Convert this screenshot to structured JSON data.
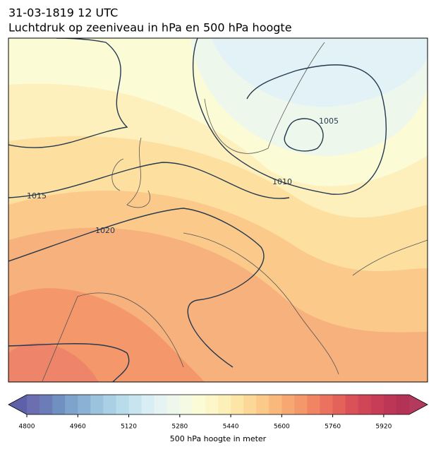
{
  "header": {
    "title": "31-03-1819 12 UTC",
    "subtitle": "Luchtdruk op zeeniveau in hPa en 500 hPa hoogte"
  },
  "map": {
    "contour_labels": [
      1005,
      1010,
      1015,
      1020
    ]
  },
  "colorbar": {
    "label": "500 hPa hoogte in meter",
    "lim": [
      4800,
      6000
    ],
    "ticks": [
      4800,
      4960,
      5120,
      5280,
      5440,
      5600,
      5760,
      5920
    ],
    "under_color": "#5e60a8",
    "over_color": "#b33a5c",
    "colors": [
      "#6b6fb1",
      "#6c7cb8",
      "#7190c2",
      "#7ea3cc",
      "#8bb2d4",
      "#9cc3dd",
      "#a9d0e4",
      "#b9dcea",
      "#c8e5ef",
      "#d8eef4",
      "#e5f3f3",
      "#eef7ec",
      "#f5fae2",
      "#fbfbd6",
      "#fdf6c8",
      "#fdefb8",
      "#fde5a7",
      "#fcd898",
      "#fbc98a",
      "#f9b97c",
      "#f7a872",
      "#f4976a",
      "#f08463",
      "#ea725e",
      "#e3625a",
      "#da5257",
      "#d04657",
      "#c73c56",
      "#bd3656",
      "#b43256"
    ]
  }
}
